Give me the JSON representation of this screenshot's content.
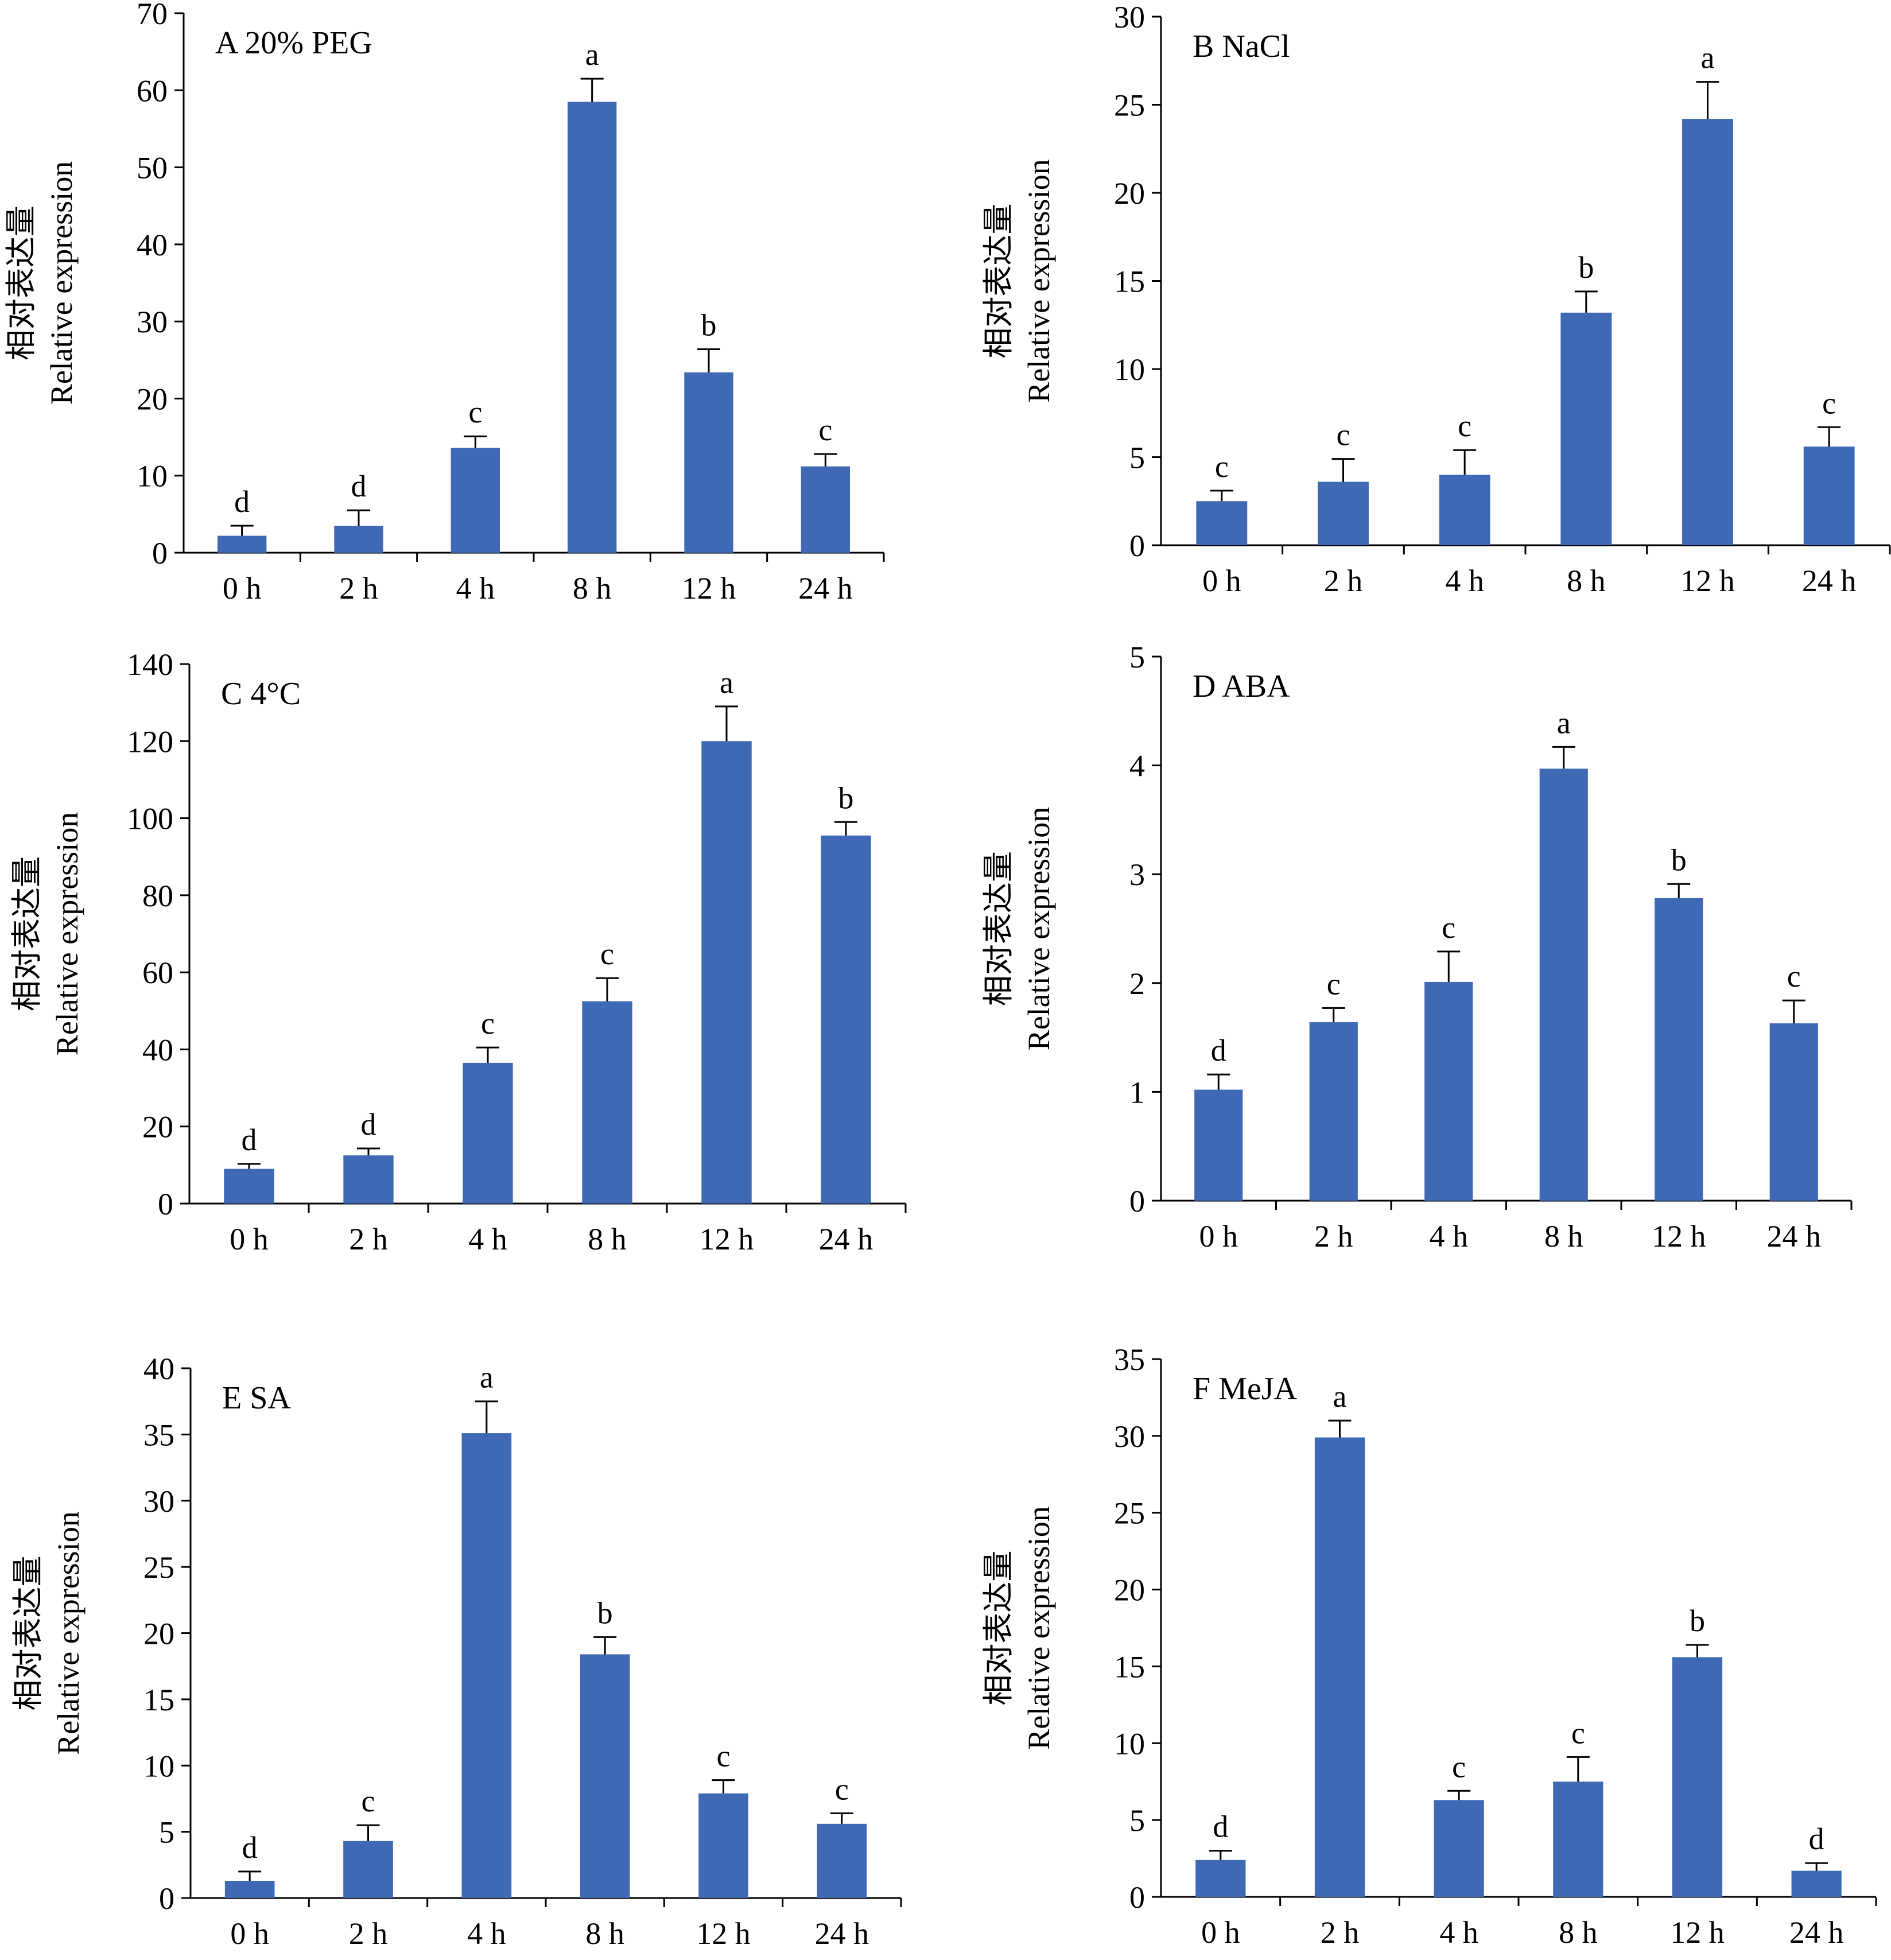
{
  "figure": {
    "ylabel_zh": "相对表达量",
    "ylabel_en": "Relative expression",
    "bar_color": "#3f69b4"
  },
  "chart_data": [
    {
      "type": "bar",
      "title": "A   20% PEG",
      "categories": [
        "0 h",
        "2 h",
        "4 h",
        "8 h",
        "12 h",
        "24 h"
      ],
      "values": [
        2.2,
        3.5,
        13.6,
        58.5,
        23.4,
        11.2
      ],
      "errors": [
        1.3,
        2.0,
        1.5,
        3.0,
        3.0,
        1.6
      ],
      "significance": [
        "d",
        "d",
        "c",
        "a",
        "b",
        "c"
      ],
      "ylim": [
        0,
        70
      ],
      "yticks": [
        0,
        10,
        20,
        30,
        40,
        50,
        60,
        70
      ],
      "ylabel_zh": "相对表达量",
      "ylabel_en": "Relative expression"
    },
    {
      "type": "bar",
      "title": "B  NaCl",
      "categories": [
        "0 h",
        "2 h",
        "4 h",
        "8 h",
        "12 h",
        "24 h"
      ],
      "values": [
        2.5,
        3.6,
        4.0,
        13.2,
        24.2,
        5.6
      ],
      "errors": [
        0.6,
        1.3,
        1.4,
        1.2,
        2.1,
        1.1
      ],
      "significance": [
        "c",
        "c",
        "c",
        "b",
        "a",
        "c"
      ],
      "ylim": [
        0,
        30
      ],
      "yticks": [
        0,
        5,
        10,
        15,
        20,
        25,
        30
      ],
      "ylabel_zh": "相对表达量",
      "ylabel_en": "Relative expression"
    },
    {
      "type": "bar",
      "title": "C  4°C",
      "categories": [
        "0 h",
        "2 h",
        "4 h",
        "8 h",
        "12 h",
        "24 h"
      ],
      "values": [
        9.0,
        12.5,
        36.5,
        52.5,
        120.0,
        95.5
      ],
      "errors": [
        1.3,
        1.8,
        4.0,
        6.0,
        9.0,
        3.5
      ],
      "significance": [
        "d",
        "d",
        "c",
        "c",
        "a",
        "b"
      ],
      "ylim": [
        0,
        140
      ],
      "yticks": [
        0,
        20,
        40,
        60,
        80,
        100,
        120,
        140
      ],
      "ylabel_zh": "相对表达量",
      "ylabel_en": "Relative expression"
    },
    {
      "type": "bar",
      "title": "D   ABA",
      "categories": [
        "0 h",
        "2 h",
        "4 h",
        "8 h",
        "12 h",
        "24 h"
      ],
      "values": [
        1.02,
        1.64,
        2.01,
        3.97,
        2.78,
        1.63
      ],
      "errors": [
        0.14,
        0.13,
        0.28,
        0.2,
        0.13,
        0.21
      ],
      "significance": [
        "d",
        "c",
        "c",
        "a",
        "b",
        "c"
      ],
      "ylim": [
        0,
        5
      ],
      "yticks": [
        0,
        1,
        2,
        3,
        4,
        5
      ],
      "ylabel_zh": "相对表达量",
      "ylabel_en": "Relative expression"
    },
    {
      "type": "bar",
      "title": "E    SA",
      "categories": [
        "0 h",
        "2 h",
        "4 h",
        "8 h",
        "12 h",
        "24 h"
      ],
      "values": [
        1.3,
        4.3,
        35.1,
        18.4,
        7.9,
        5.6
      ],
      "errors": [
        0.7,
        1.2,
        2.4,
        1.3,
        1.0,
        0.8
      ],
      "significance": [
        "d",
        "c",
        "a",
        "b",
        "c",
        "c"
      ],
      "ylim": [
        0,
        40
      ],
      "yticks": [
        0,
        5,
        10,
        15,
        20,
        25,
        30,
        35,
        40
      ],
      "ylabel_zh": "相对表达量",
      "ylabel_en": "Relative expression"
    },
    {
      "type": "bar",
      "title": "F MeJA",
      "categories": [
        "0 h",
        "2 h",
        "4 h",
        "8 h",
        "12 h",
        "24 h"
      ],
      "values": [
        2.4,
        29.9,
        6.3,
        7.5,
        15.6,
        1.7
      ],
      "errors": [
        0.6,
        1.1,
        0.6,
        1.6,
        0.8,
        0.5
      ],
      "significance": [
        "d",
        "a",
        "c",
        "c",
        "b",
        "d"
      ],
      "ylim": [
        0,
        35
      ],
      "yticks": [
        0,
        5,
        10,
        15,
        20,
        25,
        30,
        35
      ],
      "ylabel_zh": "相对表达量",
      "ylabel_en": "Relative expression"
    }
  ]
}
